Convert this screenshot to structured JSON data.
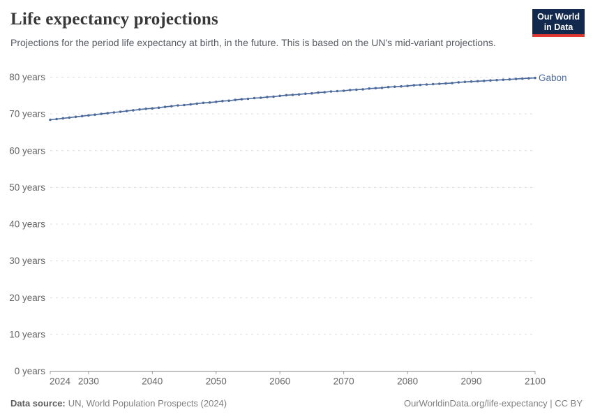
{
  "header": {
    "title": "Life expectancy projections",
    "subtitle": "Projections for the period life expectancy at birth, in the future. This is based on the UN's mid-variant projections.",
    "logo_line1": "Our World",
    "logo_line2": "in Data"
  },
  "footer": {
    "source_label": "Data source:",
    "source_text": "UN, World Population Prospects (2024)",
    "credit": "OurWorldinData.org/life-expectancy | CC BY"
  },
  "colors": {
    "line": "#4C6A9C",
    "grid": "#dcdcdc",
    "axis": "#8c8c8c",
    "tick": "#a3a3a3",
    "tick_text": "#666666",
    "logo_bg": "#12294d",
    "logo_stripe": "#e0392f"
  },
  "chart_data": {
    "type": "line",
    "title": "Life expectancy projections",
    "xlabel": "",
    "ylabel": "",
    "xlim": [
      2024,
      2100
    ],
    "ylim": [
      0,
      80
    ],
    "x_ticks": [
      2024,
      2030,
      2040,
      2050,
      2060,
      2070,
      2080,
      2090,
      2100
    ],
    "y_ticks": [
      0,
      10,
      20,
      30,
      40,
      50,
      60,
      70,
      80
    ],
    "y_tick_suffix": " years",
    "grid": "horizontal-dashed",
    "legend_position": "line-end-label",
    "x": [
      2024,
      2025,
      2026,
      2027,
      2028,
      2029,
      2030,
      2031,
      2032,
      2033,
      2034,
      2035,
      2036,
      2037,
      2038,
      2039,
      2040,
      2041,
      2042,
      2043,
      2044,
      2045,
      2046,
      2047,
      2048,
      2049,
      2050,
      2051,
      2052,
      2053,
      2054,
      2055,
      2056,
      2057,
      2058,
      2059,
      2060,
      2061,
      2062,
      2063,
      2064,
      2065,
      2066,
      2067,
      2068,
      2069,
      2070,
      2071,
      2072,
      2073,
      2074,
      2075,
      2076,
      2077,
      2078,
      2079,
      2080,
      2081,
      2082,
      2083,
      2084,
      2085,
      2086,
      2087,
      2088,
      2089,
      2090,
      2091,
      2092,
      2093,
      2094,
      2095,
      2096,
      2097,
      2098,
      2099,
      2100
    ],
    "series": [
      {
        "name": "Gabon",
        "color": "#4C6A9C",
        "values": [
          68.4,
          68.6,
          68.8,
          69.0,
          69.2,
          69.4,
          69.6,
          69.8,
          70.0,
          70.2,
          70.4,
          70.6,
          70.8,
          71.0,
          71.2,
          71.4,
          71.5,
          71.7,
          71.9,
          72.1,
          72.3,
          72.4,
          72.6,
          72.8,
          73.0,
          73.1,
          73.3,
          73.5,
          73.6,
          73.8,
          74.0,
          74.1,
          74.3,
          74.4,
          74.6,
          74.7,
          74.9,
          75.1,
          75.2,
          75.3,
          75.5,
          75.6,
          75.8,
          75.9,
          76.1,
          76.2,
          76.3,
          76.5,
          76.6,
          76.7,
          76.9,
          77.0,
          77.1,
          77.3,
          77.4,
          77.5,
          77.6,
          77.8,
          77.9,
          78.0,
          78.1,
          78.2,
          78.3,
          78.4,
          78.6,
          78.7,
          78.8,
          78.9,
          79.0,
          79.1,
          79.2,
          79.3,
          79.4,
          79.5,
          79.6,
          79.7,
          79.8
        ]
      }
    ]
  }
}
